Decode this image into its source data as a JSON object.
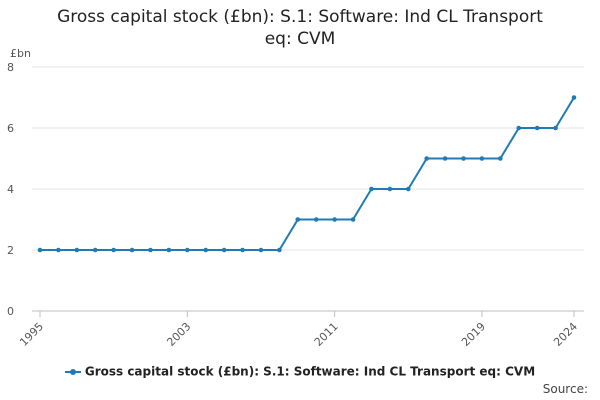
{
  "chart_data": {
    "type": "line",
    "title_line1": "Gross capital stock (£bn): S.1: Software: Ind CL Transport",
    "title_line2": "eq: CVM",
    "ylabel": "£bn",
    "ylim": [
      0,
      8
    ],
    "yticks": [
      "0",
      "2",
      "4",
      "6",
      "8"
    ],
    "xlim": [
      1995,
      2024
    ],
    "xticks": [
      "1995",
      "2003",
      "2011",
      "2019",
      "2024"
    ],
    "grid": true,
    "legend_position": "bottom",
    "series": [
      {
        "name": "Gross capital stock (£bn): S.1: Software: Ind CL Transport eq: CVM",
        "color": "#1f7bb6",
        "x": [
          1995,
          1996,
          1997,
          1998,
          1999,
          2000,
          2001,
          2002,
          2003,
          2004,
          2005,
          2006,
          2007,
          2008,
          2009,
          2010,
          2011,
          2012,
          2013,
          2014,
          2015,
          2016,
          2017,
          2018,
          2019,
          2020,
          2021,
          2022,
          2023,
          2024
        ],
        "values": [
          2,
          2,
          2,
          2,
          2,
          2,
          2,
          2,
          2,
          2,
          2,
          2,
          2,
          2,
          3,
          3,
          3,
          3,
          4,
          4,
          4,
          5,
          5,
          5,
          5,
          5,
          6,
          6,
          6,
          7
        ]
      }
    ]
  },
  "legend_label": "Gross capital stock (£bn): S.1: Software: Ind CL Transport eq: CVM",
  "source_label": "Source:"
}
